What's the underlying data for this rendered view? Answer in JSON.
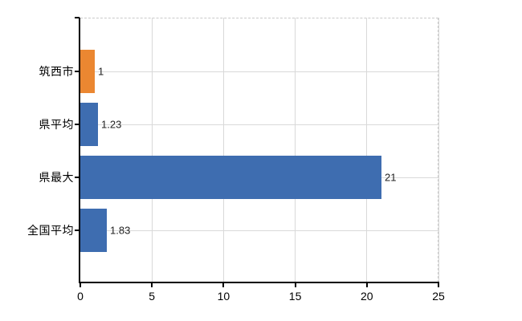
{
  "chart_data": {
    "type": "bar",
    "orientation": "horizontal",
    "categories": [
      "筑西市",
      "県平均",
      "県最大",
      "全国平均"
    ],
    "values": [
      1,
      1.23,
      21,
      1.83
    ],
    "value_labels": [
      "1",
      "1.23",
      "21",
      "1.83"
    ],
    "bar_colors": [
      "#eb8731",
      "#3e6db0",
      "#3e6db0",
      "#3e6db0"
    ],
    "x_ticks": [
      0,
      5,
      10,
      15,
      20,
      25
    ],
    "xlim": [
      0,
      25
    ],
    "grid": "on",
    "legend": "none",
    "colors": {
      "highlight_bar": "#eb8731",
      "default_bar": "#3e6db0",
      "gridline": "#d9d9d9",
      "dashed_border": "#c9c9c9",
      "axis": "#000000",
      "value_label_text": "#222222",
      "background": "#ffffff"
    }
  }
}
